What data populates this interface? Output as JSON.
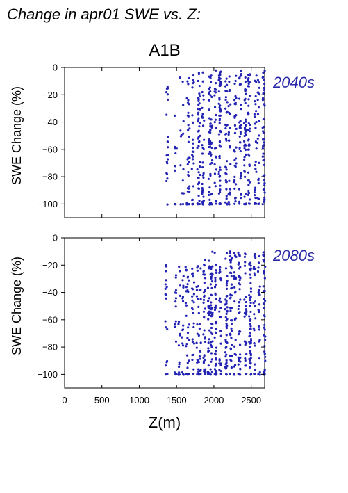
{
  "title": "Change in apr01 SWE vs. Z:",
  "scenario": "A1B",
  "xlabel": "Z(m)",
  "ylabel": "SWE Change (%)",
  "colors": {
    "points": "#2323b4",
    "period_label": "#2a2aa8",
    "axes": "#000000"
  },
  "chart_data": [
    {
      "type": "scatter",
      "period": "2040s",
      "xlabel": "Z(m)",
      "ylabel": "SWE Change (%)",
      "xlim": [
        0,
        2680
      ],
      "ylim": [
        -110,
        0
      ],
      "x_ticks": [
        0,
        500,
        1000,
        1500,
        2000,
        2500
      ],
      "y_ticks": [
        0,
        -20,
        -40,
        -60,
        -80,
        -100
      ],
      "show_x_tick_labels": false,
      "point_clusters": [
        {
          "x": [
            1370,
            1420
          ],
          "y": [
            -100,
            -3
          ],
          "density": "medium"
        },
        {
          "x": [
            1480,
            1560
          ],
          "y": [
            -100,
            -3
          ],
          "density": "low"
        },
        {
          "x": [
            1580,
            1660
          ],
          "y": [
            -100,
            -10
          ],
          "density": "low"
        },
        {
          "x": [
            1660,
            1800
          ],
          "y": [
            -100,
            -5
          ],
          "density": "medium"
        },
        {
          "x": [
            1800,
            1960
          ],
          "y": [
            -100,
            -3
          ],
          "density": "high"
        },
        {
          "x": [
            1960,
            2680
          ],
          "y": [
            -100,
            -2
          ],
          "density": "very-high"
        }
      ]
    },
    {
      "type": "scatter",
      "period": "2080s",
      "xlabel": "Z(m)",
      "ylabel": "SWE Change (%)",
      "xlim": [
        0,
        2680
      ],
      "ylim": [
        -110,
        0
      ],
      "x_ticks": [
        0,
        500,
        1000,
        1500,
        2000,
        2500
      ],
      "x_tick_labels": [
        "0",
        "500",
        "1000",
        "1500",
        "2000",
        "2500"
      ],
      "y_ticks": [
        0,
        -20,
        -40,
        -60,
        -80,
        -100
      ],
      "show_x_tick_labels": true,
      "point_clusters": [
        {
          "x": [
            1370,
            1420
          ],
          "y": [
            -100,
            -20
          ],
          "density": "medium"
        },
        {
          "x": [
            1480,
            1560
          ],
          "y": [
            -100,
            -20
          ],
          "density": "low"
        },
        {
          "x": [
            1580,
            1660
          ],
          "y": [
            -100,
            -20
          ],
          "density": "low"
        },
        {
          "x": [
            1660,
            1800
          ],
          "y": [
            -100,
            -18
          ],
          "density": "medium"
        },
        {
          "x": [
            1800,
            1960
          ],
          "y": [
            -100,
            -15
          ],
          "density": "high"
        },
        {
          "x": [
            1960,
            2680
          ],
          "y": [
            -100,
            -10
          ],
          "density": "very-high"
        }
      ]
    }
  ]
}
